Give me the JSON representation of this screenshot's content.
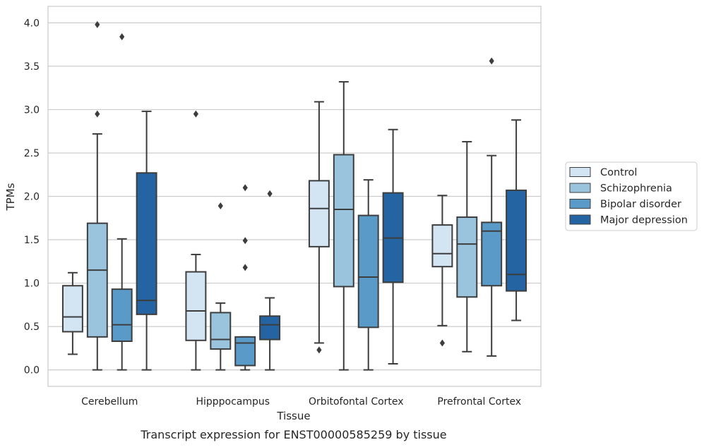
{
  "chart_data": {
    "type": "box",
    "caption": "Transcript expression for ENST00000585259 by tissue",
    "xlabel": "Tissue",
    "ylabel": "TPMs",
    "ylim": [
      -0.19,
      4.19
    ],
    "yticks": [
      "0.0",
      "0.5",
      "1.0",
      "1.5",
      "2.0",
      "2.5",
      "3.0",
      "3.5",
      "4.0"
    ],
    "grid": true,
    "legend_position": "right",
    "categories": [
      "Cerebellum",
      "Hipppocampus",
      "Orbitofontal Cortex",
      "Prefrontal Cortex"
    ],
    "series": [
      {
        "name": "Control",
        "color": "#d3e4f3",
        "boxes": [
          {
            "whisker_low": 0.18,
            "q1": 0.44,
            "median": 0.61,
            "q3": 0.97,
            "whisker_high": 1.12,
            "outliers": []
          },
          {
            "whisker_low": 0.0,
            "q1": 0.34,
            "median": 0.68,
            "q3": 1.13,
            "whisker_high": 1.33,
            "outliers": [
              2.95
            ]
          },
          {
            "whisker_low": 0.31,
            "q1": 1.42,
            "median": 1.86,
            "q3": 2.18,
            "whisker_high": 3.09,
            "outliers": [
              0.23
            ]
          },
          {
            "whisker_low": 0.51,
            "q1": 1.19,
            "median": 1.34,
            "q3": 1.67,
            "whisker_high": 2.01,
            "outliers": [
              0.31
            ]
          }
        ]
      },
      {
        "name": "Schizophrenia",
        "color": "#9ac3dd",
        "boxes": [
          {
            "whisker_low": 0.0,
            "q1": 0.38,
            "median": 1.15,
            "q3": 1.69,
            "whisker_high": 2.72,
            "outliers": [
              3.98,
              2.95
            ]
          },
          {
            "whisker_low": 0.0,
            "q1": 0.24,
            "median": 0.35,
            "q3": 0.66,
            "whisker_high": 0.77,
            "outliers": [
              1.89
            ]
          },
          {
            "whisker_low": 0.0,
            "q1": 0.96,
            "median": 1.85,
            "q3": 2.48,
            "whisker_high": 3.32,
            "outliers": []
          },
          {
            "whisker_low": 0.21,
            "q1": 0.84,
            "median": 1.45,
            "q3": 1.76,
            "whisker_high": 2.63,
            "outliers": []
          }
        ]
      },
      {
        "name": "Bipolar disorder",
        "color": "#5a9ac9",
        "boxes": [
          {
            "whisker_low": 0.0,
            "q1": 0.33,
            "median": 0.52,
            "q3": 0.93,
            "whisker_high": 1.51,
            "outliers": [
              3.84
            ]
          },
          {
            "whisker_low": 0.0,
            "q1": 0.05,
            "median": 0.31,
            "q3": 0.38,
            "whisker_high": 0.38,
            "outliers": [
              2.1,
              1.49,
              1.18
            ]
          },
          {
            "whisker_low": 0.0,
            "q1": 0.49,
            "median": 1.07,
            "q3": 1.78,
            "whisker_high": 2.19,
            "outliers": []
          },
          {
            "whisker_low": 0.16,
            "q1": 0.97,
            "median": 1.6,
            "q3": 1.7,
            "whisker_high": 2.47,
            "outliers": [
              3.56
            ]
          }
        ]
      },
      {
        "name": "Major depression",
        "color": "#2564a3",
        "boxes": [
          {
            "whisker_low": 0.0,
            "q1": 0.64,
            "median": 0.8,
            "q3": 2.27,
            "whisker_high": 2.98,
            "outliers": []
          },
          {
            "whisker_low": 0.0,
            "q1": 0.35,
            "median": 0.52,
            "q3": 0.62,
            "whisker_high": 0.83,
            "outliers": [
              2.03
            ]
          },
          {
            "whisker_low": 0.07,
            "q1": 1.01,
            "median": 1.52,
            "q3": 2.04,
            "whisker_high": 2.77,
            "outliers": []
          },
          {
            "whisker_low": 0.57,
            "q1": 0.91,
            "median": 1.1,
            "q3": 2.07,
            "whisker_high": 2.88,
            "outliers": []
          }
        ]
      }
    ]
  }
}
